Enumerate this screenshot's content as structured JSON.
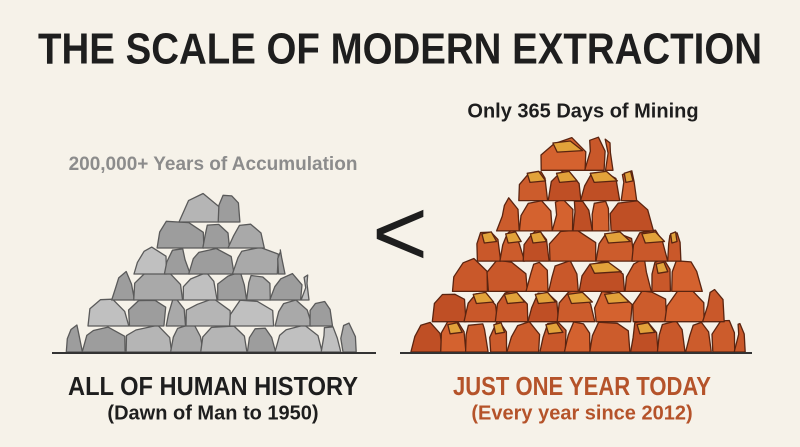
{
  "header": {
    "title": "THE SCALE OF MODERN EXTRACTION"
  },
  "comparator": "<",
  "left": {
    "caption": "200,000+ Years of Accumulation",
    "label": "ALL OF HUMAN HISTORY",
    "sublabel": "(Dawn of Man to 1950)"
  },
  "right": {
    "caption": "Only 365 Days of Mining",
    "label": "JUST ONE YEAR TODAY",
    "sublabel": "(Every year since 2012)"
  }
}
